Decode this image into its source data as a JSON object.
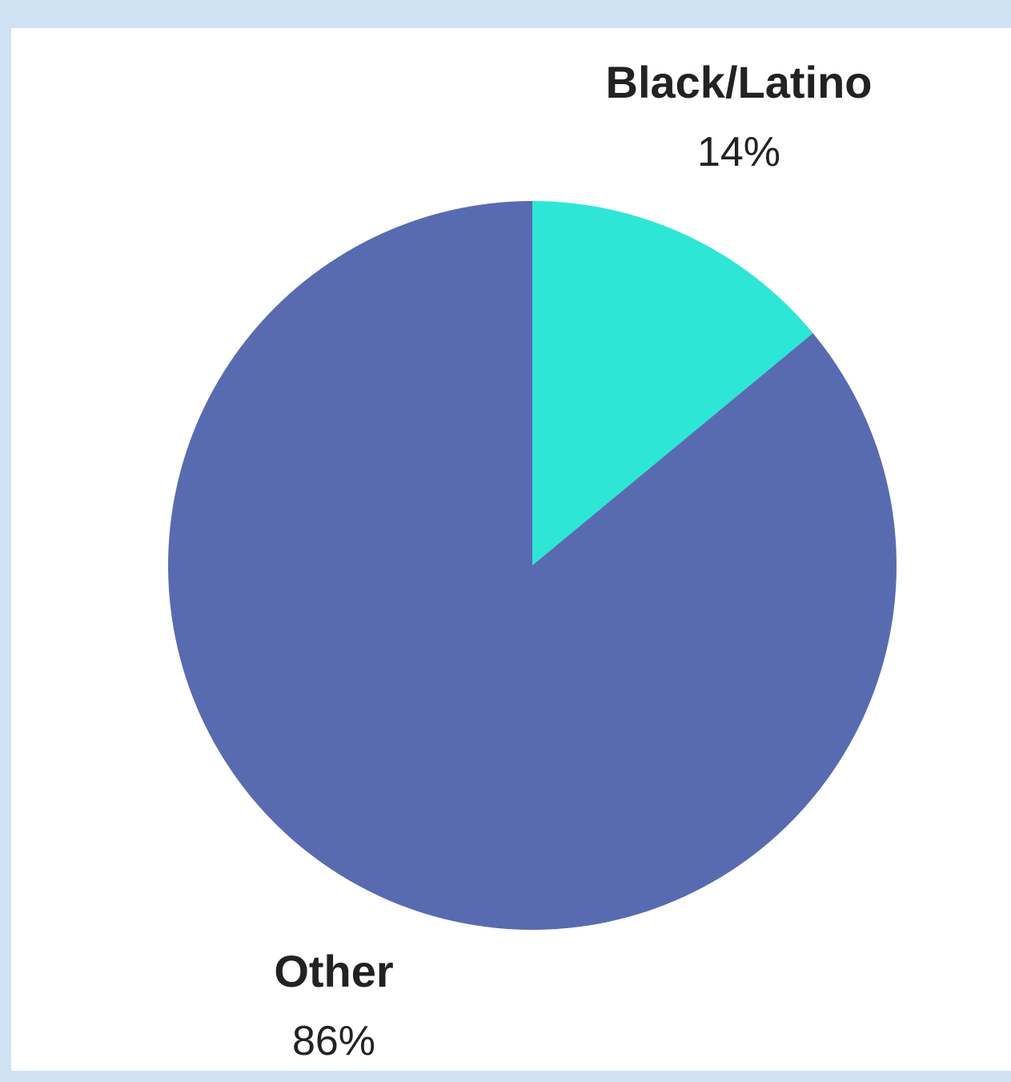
{
  "chart_data": {
    "type": "pie",
    "title": "",
    "slices": [
      {
        "label": "Black/Latino",
        "value": 14,
        "value_label": "14%",
        "color": "#2ee6d6"
      },
      {
        "label": "Other",
        "value": 86,
        "value_label": "86%",
        "color": "#586bb1"
      }
    ],
    "start_angle": "12 o'clock",
    "direction": "clockwise",
    "legend": "none",
    "label_placement": "outside"
  },
  "colors": {
    "background": "#cfe2f3",
    "panel": "#ffffff",
    "text": "#222222"
  }
}
